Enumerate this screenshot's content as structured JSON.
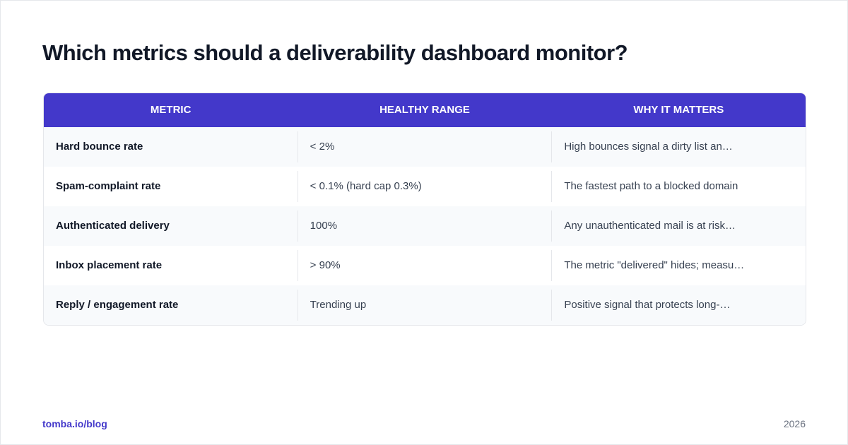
{
  "title": "Which metrics should a deliverability dashboard monitor?",
  "table": {
    "headers": [
      "METRIC",
      "HEALTHY RANGE",
      "WHY IT MATTERS"
    ],
    "rows": [
      [
        "Hard bounce rate",
        "< 2%",
        "High bounces signal a dirty list an…"
      ],
      [
        "Spam-complaint rate",
        "< 0.1% (hard cap 0.3%)",
        "The fastest path to a blocked domain"
      ],
      [
        "Authenticated delivery",
        "100%",
        "Any unauthenticated mail is at risk…"
      ],
      [
        "Inbox placement rate",
        "> 90%",
        "The metric \"delivered\" hides; measu…"
      ],
      [
        "Reply / engagement rate",
        "Trending up",
        "Positive signal that protects long-…"
      ]
    ]
  },
  "footer": {
    "source": "tomba.io/blog",
    "year": "2026"
  }
}
